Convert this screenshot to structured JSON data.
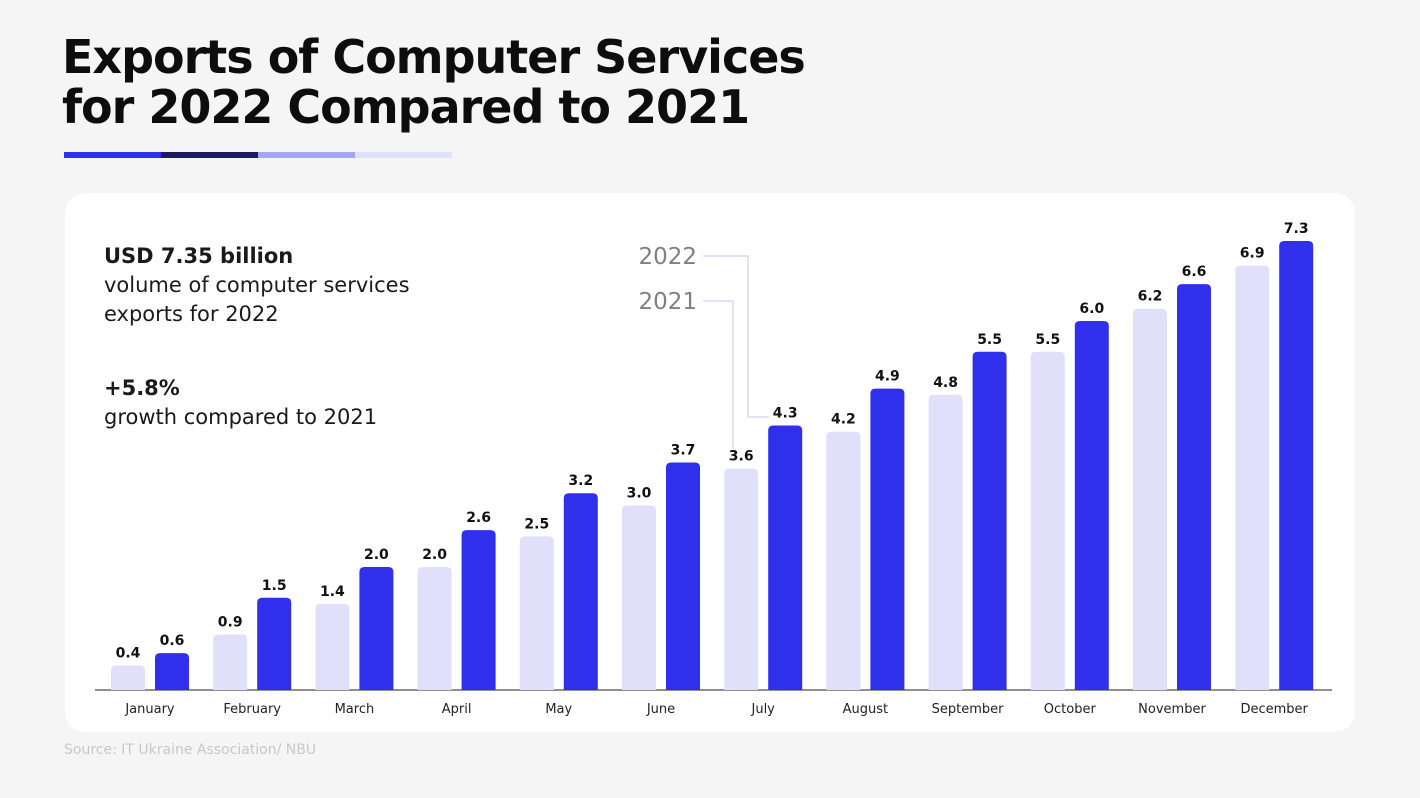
{
  "title_line1": "Exports of Computer Services",
  "title_line2": "for 2022 Compared to 2021",
  "stripe_colors": [
    "#3030ec",
    "#1c1a5c",
    "#a3a6fa",
    "#e0e0fb"
  ],
  "stats": {
    "volume_value": "USD 7.35 billion",
    "volume_line1": "volume of computer services",
    "volume_line2": "exports for 2022",
    "growth_value": "+5.8%",
    "growth_text": "growth compared to 2021"
  },
  "source": "Source: IT Ukraine Association/ NBU",
  "chart_data": {
    "type": "bar",
    "categories": [
      "January",
      "February",
      "March",
      "April",
      "May",
      "June",
      "July",
      "August",
      "September",
      "October",
      "November",
      "December"
    ],
    "series": [
      {
        "name": "2021",
        "color": "#e0e0fb",
        "values": [
          0.4,
          0.9,
          1.4,
          2.0,
          2.5,
          3.0,
          3.6,
          4.2,
          4.8,
          5.5,
          6.2,
          6.9
        ]
      },
      {
        "name": "2022",
        "color": "#3030ec",
        "values": [
          0.6,
          1.5,
          2.0,
          2.6,
          3.2,
          3.7,
          4.3,
          4.9,
          5.5,
          6.0,
          6.6,
          7.3
        ]
      }
    ],
    "ylim": [
      0,
      7.5
    ],
    "grid": false,
    "legend": "callout lines pointing to July bars"
  }
}
